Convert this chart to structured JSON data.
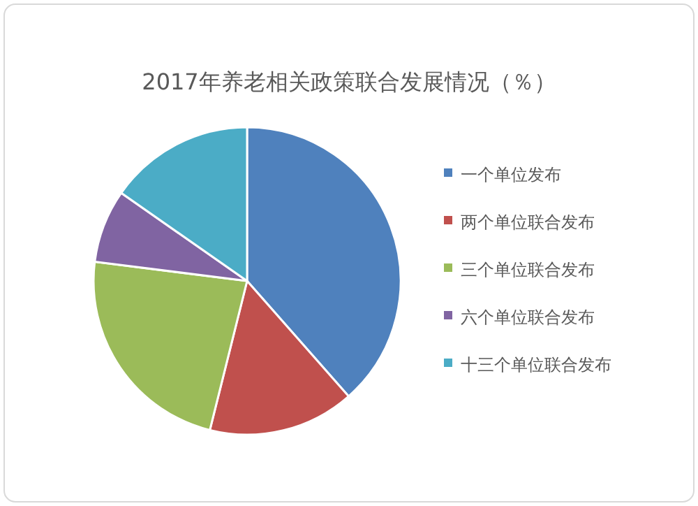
{
  "chart_data": {
    "type": "pie",
    "title": "2017年养老相关政策联合发展情况（％）",
    "categories": [
      "一个单位发布",
      "两个单位联合发布",
      "三个单位联合发布",
      "六个单位联合发布",
      "十三个单位联合发布"
    ],
    "values": [
      38.5,
      15.4,
      23.1,
      7.7,
      15.3
    ],
    "colors": [
      "#4f81bd",
      "#c0504d",
      "#9bbb59",
      "#8064a2",
      "#4bacc6"
    ],
    "legend": "right"
  }
}
